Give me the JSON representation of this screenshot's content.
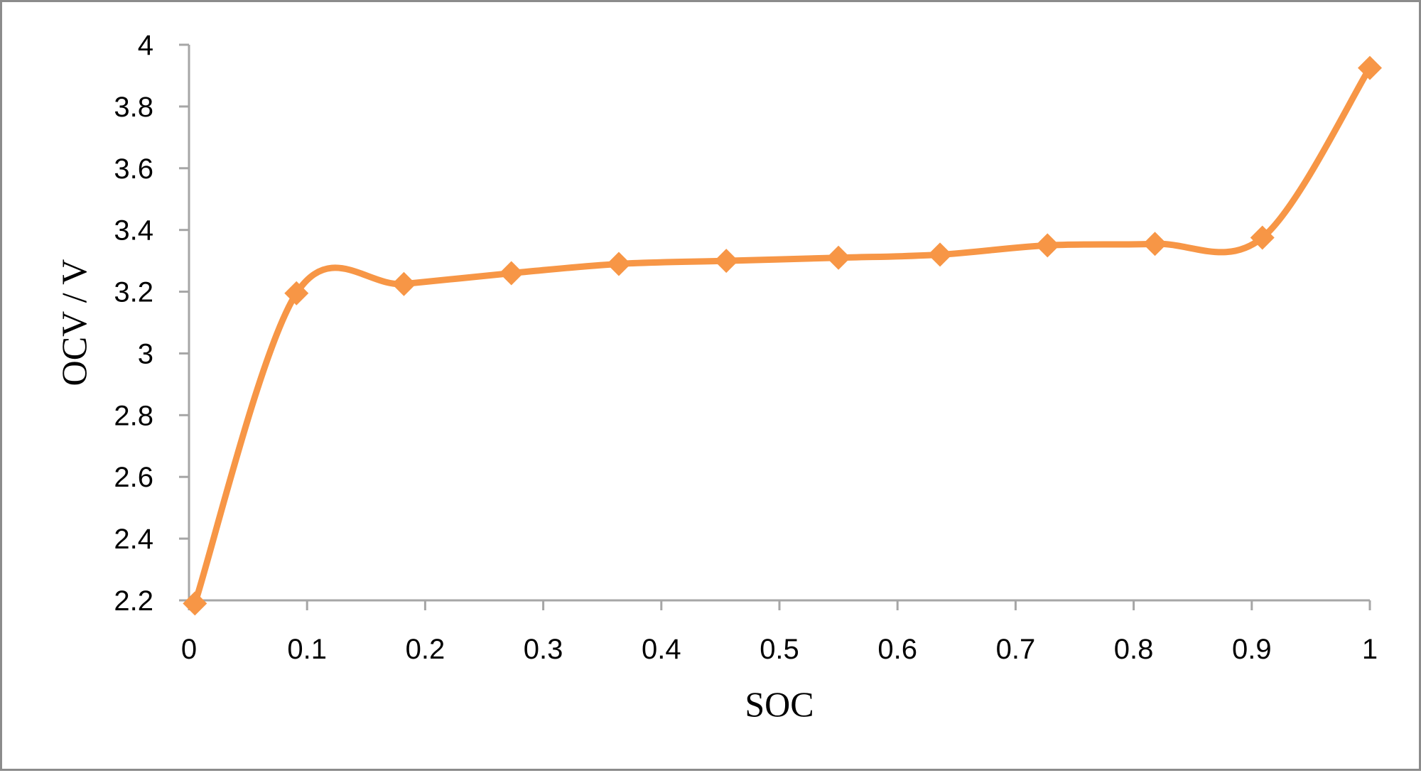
{
  "chart_data": {
    "type": "line",
    "title": "",
    "xlabel": "SOC",
    "ylabel": "OCV / V",
    "xlim": [
      0,
      1
    ],
    "ylim": [
      2.2,
      4
    ],
    "x_ticks": [
      "0",
      "0.1",
      "0.2",
      "0.3",
      "0.4",
      "0.5",
      "0.6",
      "0.7",
      "0.8",
      "0.9",
      "1"
    ],
    "y_ticks": [
      "2.2",
      "2.4",
      "2.6",
      "2.8",
      "3",
      "3.2",
      "3.4",
      "3.6",
      "3.8",
      "4"
    ],
    "grid": false,
    "legend": "none",
    "smooth": true,
    "marker": "diamond",
    "series": [
      {
        "color": "#f79646",
        "x": [
          0.005,
          0.091,
          0.182,
          0.273,
          0.364,
          0.455,
          0.55,
          0.636,
          0.727,
          0.818,
          0.909,
          1.0
        ],
        "y": [
          2.19,
          3.195,
          3.225,
          3.26,
          3.29,
          3.3,
          3.31,
          3.32,
          3.35,
          3.355,
          3.375,
          3.925
        ]
      }
    ]
  }
}
